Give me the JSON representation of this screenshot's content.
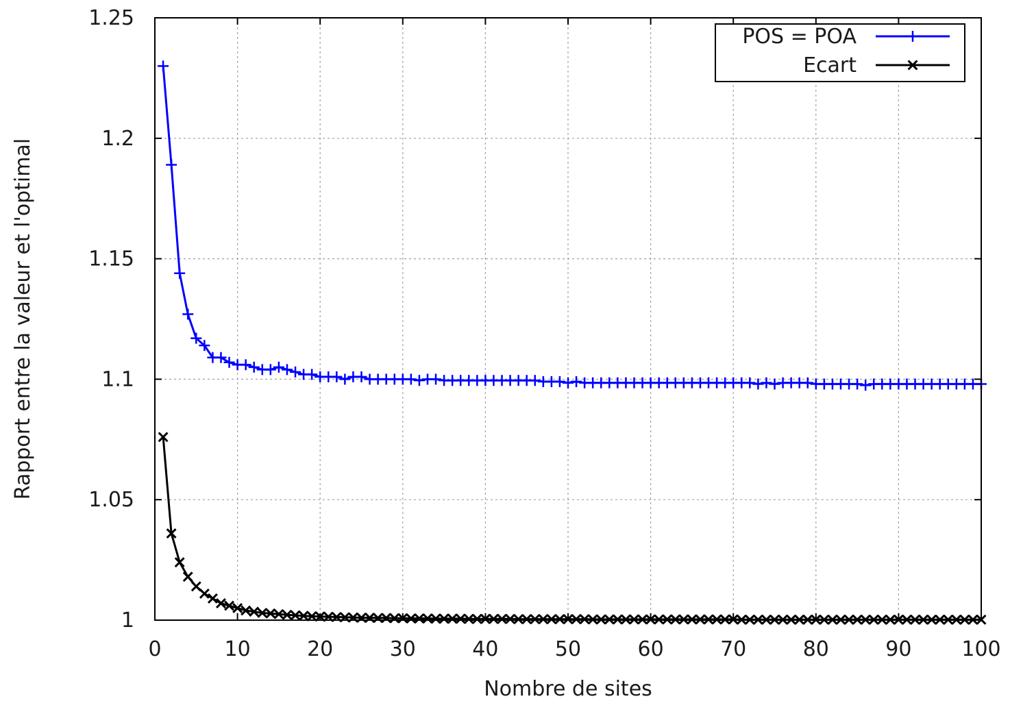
{
  "chart_data": {
    "type": "line",
    "title": "",
    "xlabel": "Nombre de sites",
    "ylabel": "Rapport entre la valeur et l'optimal",
    "xlim": [
      0,
      100
    ],
    "ylim": [
      1,
      1.25
    ],
    "xticks": [
      0,
      10,
      20,
      30,
      40,
      50,
      60,
      70,
      80,
      90,
      100
    ],
    "xtick_labels": [
      "0",
      "10",
      "20",
      "30",
      "40",
      "50",
      "60",
      "70",
      "80",
      "90",
      "100"
    ],
    "yticks": [
      1,
      1.05,
      1.1,
      1.15,
      1.2,
      1.25
    ],
    "ytick_labels": [
      "1",
      "1.05",
      "1.1",
      "1.15",
      "1.2",
      "1.25"
    ],
    "grid": true,
    "legend_position": "top-right",
    "series": [
      {
        "name": "POS = POA",
        "color": "#0000ff",
        "marker": "plus",
        "x": [
          1,
          2,
          3,
          4,
          5,
          6,
          7,
          8,
          9,
          10,
          11,
          12,
          13,
          14,
          15,
          16,
          17,
          18,
          19,
          20,
          21,
          22,
          23,
          24,
          25,
          26,
          27,
          28,
          29,
          30,
          31,
          32,
          33,
          34,
          35,
          36,
          37,
          38,
          39,
          40,
          41,
          42,
          43,
          44,
          45,
          46,
          47,
          48,
          49,
          50,
          51,
          52,
          53,
          54,
          55,
          56,
          57,
          58,
          59,
          60,
          61,
          62,
          63,
          64,
          65,
          66,
          67,
          68,
          69,
          70,
          71,
          72,
          73,
          74,
          75,
          76,
          77,
          78,
          79,
          80,
          81,
          82,
          83,
          84,
          85,
          86,
          87,
          88,
          89,
          90,
          91,
          92,
          93,
          94,
          95,
          96,
          97,
          98,
          99,
          100
        ],
        "values": [
          1.23,
          1.189,
          1.144,
          1.127,
          1.117,
          1.114,
          1.109,
          1.109,
          1.107,
          1.106,
          1.106,
          1.105,
          1.104,
          1.104,
          1.105,
          1.104,
          1.103,
          1.102,
          1.102,
          1.101,
          1.101,
          1.101,
          1.1,
          1.101,
          1.101,
          1.1,
          1.1,
          1.1,
          1.1,
          1.1,
          1.1,
          1.0995,
          1.1,
          1.1,
          1.0995,
          1.0995,
          1.0995,
          1.0995,
          1.0995,
          1.0995,
          1.0995,
          1.0995,
          1.0995,
          1.0995,
          1.0995,
          1.0995,
          1.099,
          1.099,
          1.099,
          1.0985,
          1.099,
          1.0985,
          1.0985,
          1.0985,
          1.0985,
          1.0985,
          1.0985,
          1.0985,
          1.0985,
          1.0985,
          1.0985,
          1.0985,
          1.0985,
          1.0985,
          1.0985,
          1.0985,
          1.0985,
          1.0985,
          1.0985,
          1.0985,
          1.0985,
          1.0985,
          1.098,
          1.0985,
          1.098,
          1.0985,
          1.0985,
          1.0985,
          1.0985,
          1.098,
          1.098,
          1.098,
          1.098,
          1.098,
          1.098,
          1.0975,
          1.098,
          1.098,
          1.098,
          1.098,
          1.098,
          1.098,
          1.098,
          1.098,
          1.098,
          1.098,
          1.098,
          1.098,
          1.098,
          1.098
        ]
      },
      {
        "name": "Ecart",
        "color": "#000000",
        "marker": "cross",
        "x": [
          1,
          2,
          3,
          4,
          5,
          6,
          7,
          8,
          9,
          10,
          11,
          12,
          13,
          14,
          15,
          16,
          17,
          18,
          19,
          20,
          21,
          22,
          23,
          24,
          25,
          26,
          27,
          28,
          29,
          30,
          31,
          32,
          33,
          34,
          35,
          36,
          37,
          38,
          39,
          40,
          41,
          42,
          43,
          44,
          45,
          46,
          47,
          48,
          49,
          50,
          51,
          52,
          53,
          54,
          55,
          56,
          57,
          58,
          59,
          60,
          61,
          62,
          63,
          64,
          65,
          66,
          67,
          68,
          69,
          70,
          71,
          72,
          73,
          74,
          75,
          76,
          77,
          78,
          79,
          80,
          81,
          82,
          83,
          84,
          85,
          86,
          87,
          88,
          89,
          90,
          91,
          92,
          93,
          94,
          95,
          96,
          97,
          98,
          99,
          100
        ],
        "values": [
          1.076,
          1.036,
          1.024,
          1.018,
          1.014,
          1.011,
          1.009,
          1.007,
          1.006,
          1.005,
          1.004,
          1.0035,
          1.003,
          1.0028,
          1.0025,
          1.0022,
          1.002,
          1.0018,
          1.0016,
          1.0015,
          1.0014,
          1.0013,
          1.0012,
          1.0011,
          1.001,
          1.001,
          1.0009,
          1.0009,
          1.0008,
          1.0008,
          1.0007,
          1.0007,
          1.0007,
          1.0006,
          1.0006,
          1.0006,
          1.0006,
          1.0005,
          1.0005,
          1.0005,
          1.0005,
          1.0005,
          1.0005,
          1.0004,
          1.0004,
          1.0004,
          1.0004,
          1.0004,
          1.0004,
          1.0004,
          1.0004,
          1.0004,
          1.0003,
          1.0003,
          1.0003,
          1.0003,
          1.0003,
          1.0003,
          1.0003,
          1.0003,
          1.0003,
          1.0003,
          1.0003,
          1.0003,
          1.0003,
          1.0003,
          1.0003,
          1.0003,
          1.0003,
          1.0003,
          1.0002,
          1.0002,
          1.0002,
          1.0002,
          1.0002,
          1.0002,
          1.0002,
          1.0002,
          1.0002,
          1.0002,
          1.0002,
          1.0002,
          1.0002,
          1.0002,
          1.0002,
          1.0002,
          1.0002,
          1.0002,
          1.0002,
          1.0002,
          1.0002,
          1.0002,
          1.0002,
          1.0002,
          1.0002,
          1.0002,
          1.0002,
          1.0002,
          1.0002,
          1.0002
        ]
      }
    ]
  }
}
